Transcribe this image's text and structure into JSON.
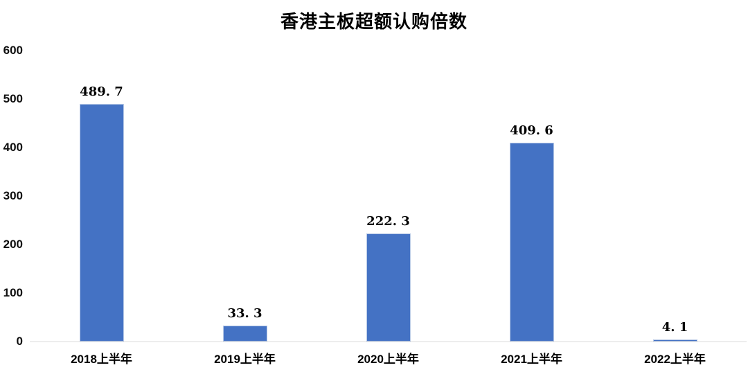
{
  "title": "香港主板超额认购倍数",
  "chart_data": {
    "type": "bar",
    "title": "香港主板超额认购倍数",
    "categories": [
      "2018上半年",
      "2019上半年",
      "2020上半年",
      "2021上半年",
      "2022上半年"
    ],
    "values": [
      489.7,
      33.3,
      222.3,
      409.6,
      4.1
    ],
    "data_labels": [
      "489. 7",
      "33. 3",
      "222. 3",
      "409. 6",
      "4. 1"
    ],
    "yticks": [
      0,
      100,
      200,
      300,
      400,
      500,
      600
    ],
    "ylim": [
      0,
      600
    ],
    "xlabel": "",
    "ylabel": "",
    "grid": false,
    "legend": false,
    "bar_color": "#4472c4",
    "bar_border_color": "#b7c9e6",
    "axis_line_color": "#d9d9d9",
    "text_color": "#000000",
    "background": "#ffffff"
  }
}
